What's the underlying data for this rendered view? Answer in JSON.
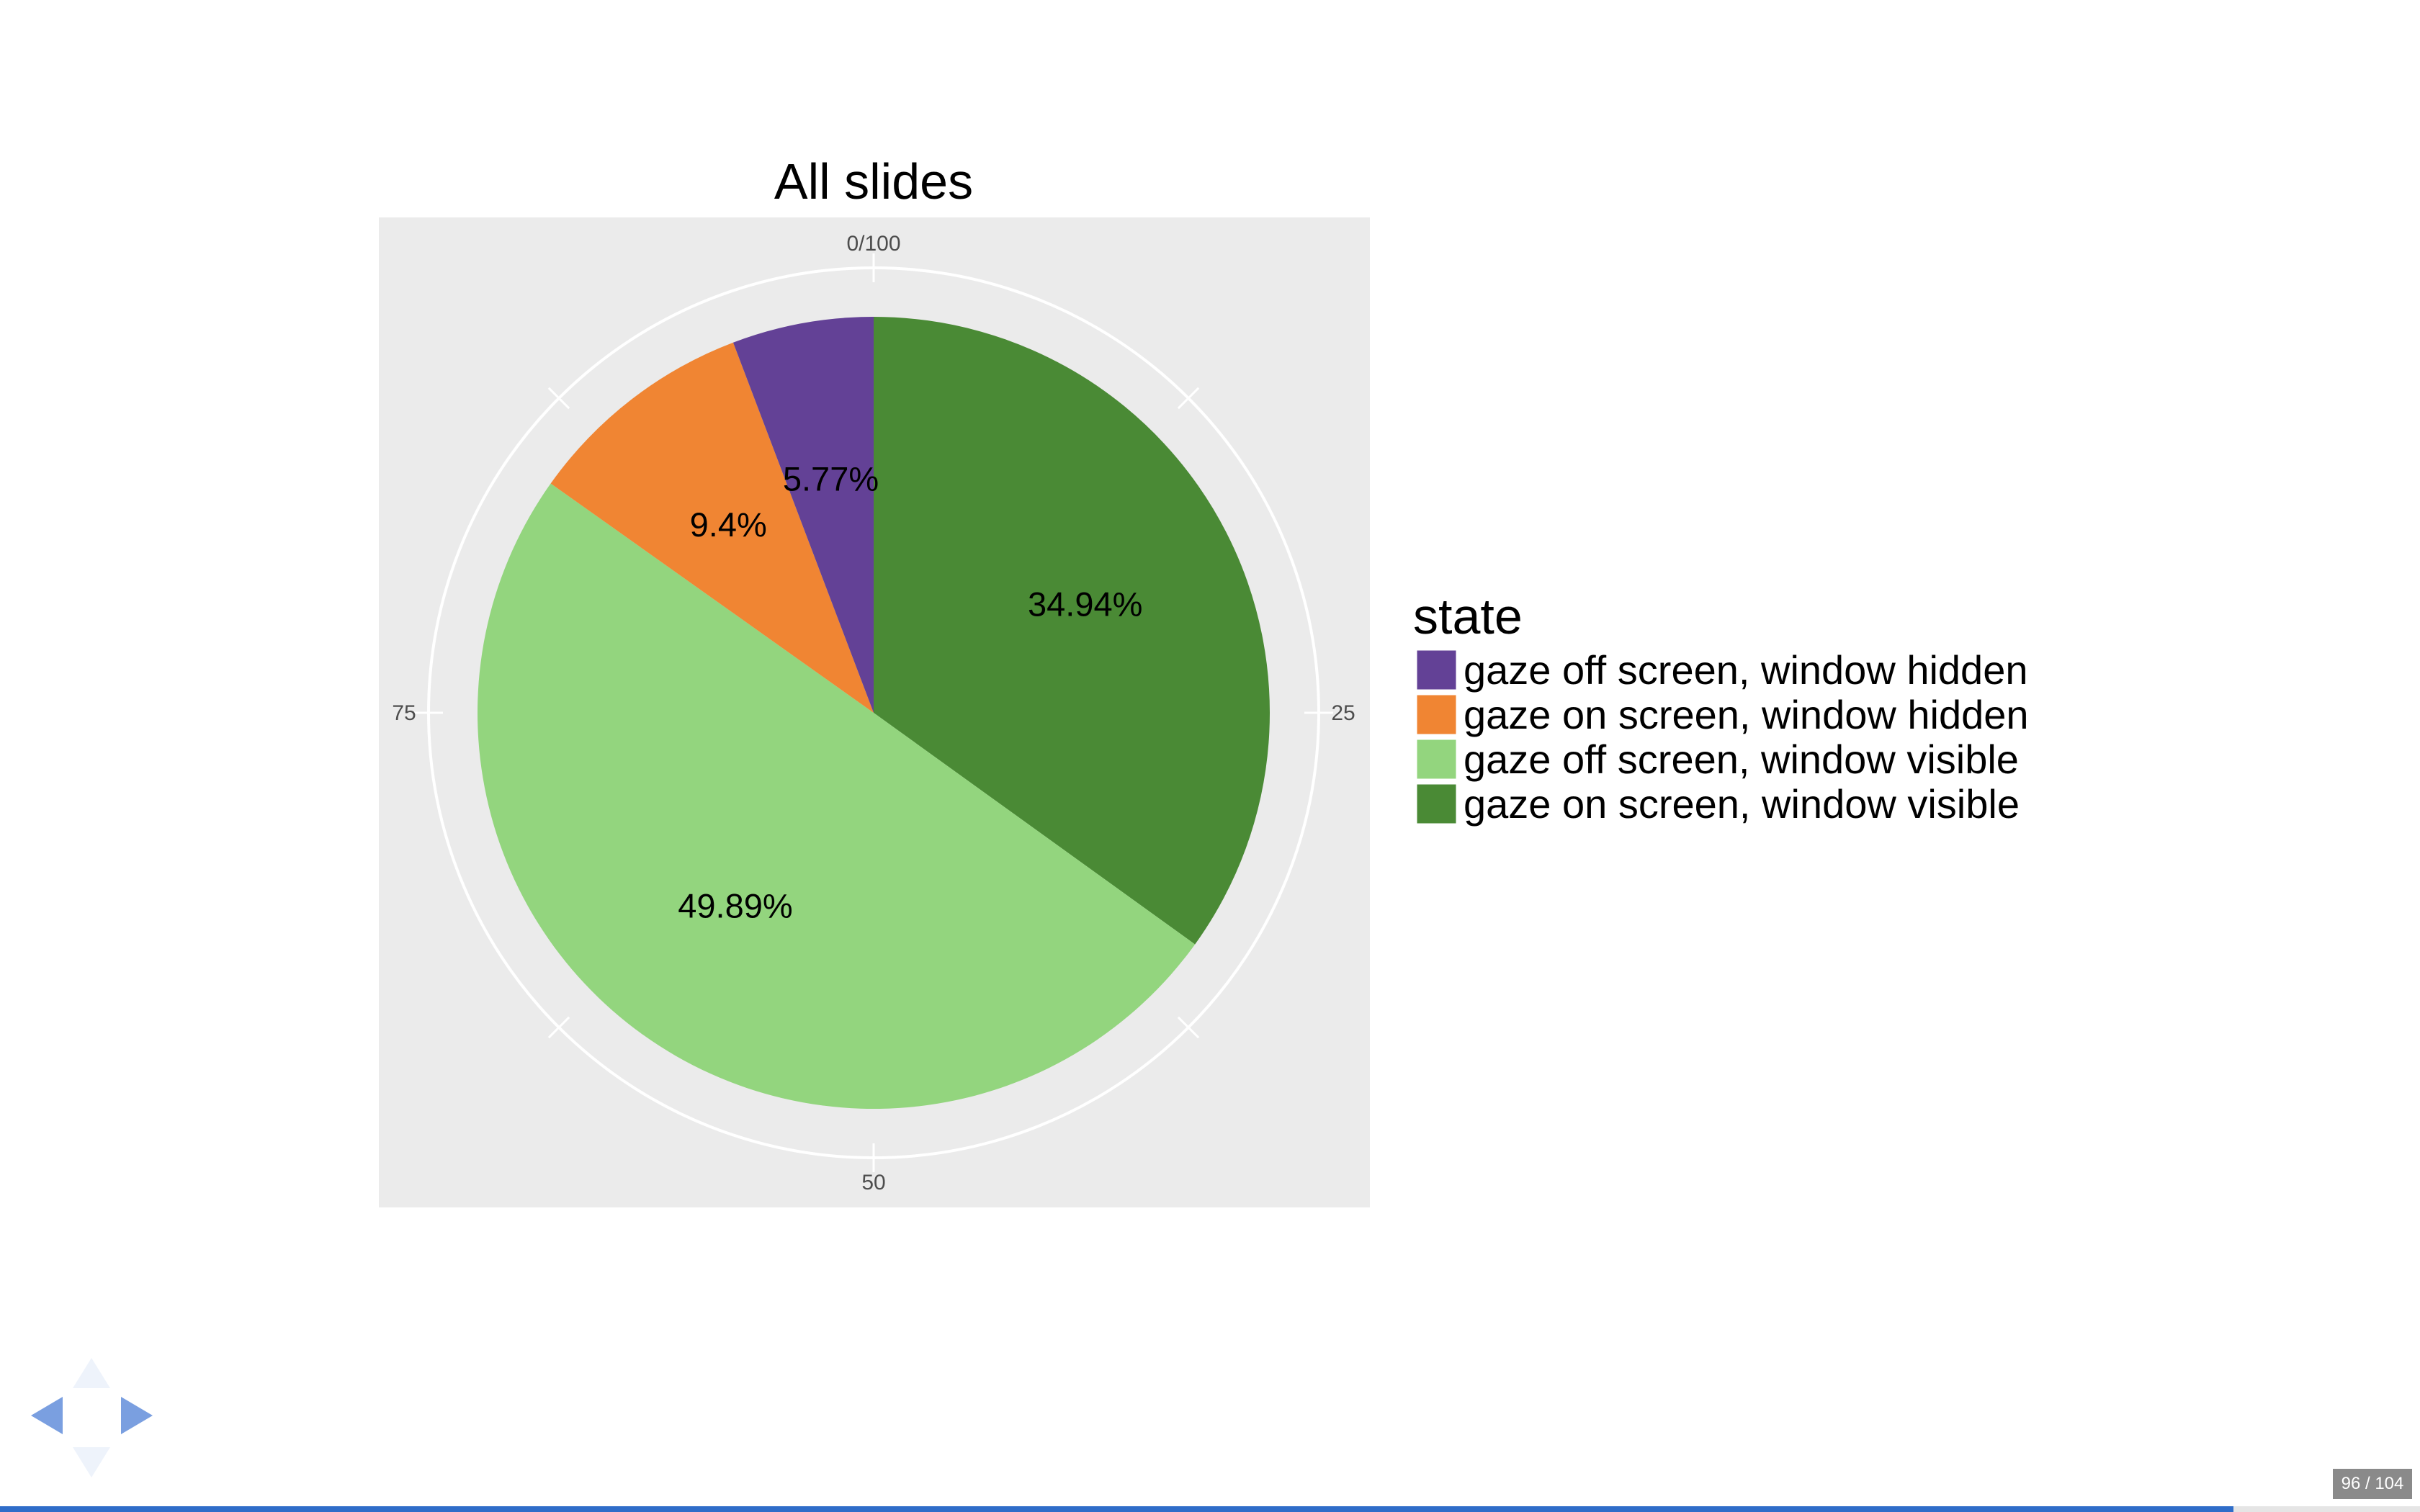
{
  "chart_data": {
    "type": "pie",
    "title": "All slides",
    "slices": [
      {
        "label": "gaze on screen, window visible",
        "value": 34.94,
        "display": "34.94%",
        "color": "#4a8a35"
      },
      {
        "label": "gaze off screen, window visible",
        "value": 49.89,
        "display": "49.89%",
        "color": "#93d57e"
      },
      {
        "label": "gaze on screen, window hidden",
        "value": 9.4,
        "display": "9.4%",
        "color": "#f08533"
      },
      {
        "label": "gaze off screen, window hidden",
        "value": 5.77,
        "display": "5.77%",
        "color": "#634196"
      }
    ],
    "axis_ticks": [
      {
        "value": 0,
        "label": "0/100"
      },
      {
        "value": 25,
        "label": "25"
      },
      {
        "value": 50,
        "label": "50"
      },
      {
        "value": 75,
        "label": "75"
      }
    ],
    "axis_range": [
      0,
      100
    ],
    "panel_background": "#ebebeb",
    "grid": true,
    "legend": {
      "title": "state",
      "position": "right",
      "entries": [
        {
          "label": "gaze off screen, window hidden",
          "color": "#634196"
        },
        {
          "label": "gaze on screen, window hidden",
          "color": "#f08533"
        },
        {
          "label": "gaze off screen, window visible",
          "color": "#93d57e"
        },
        {
          "label": "gaze on screen, window visible",
          "color": "#4a8a35"
        }
      ]
    }
  },
  "navigation": {
    "icons": [
      "arrow-left-icon",
      "arrow-right-icon",
      "arrow-up-icon",
      "arrow-down-icon"
    ],
    "accent_color": "#7a9fe0"
  },
  "slide_counter": "96 / 104",
  "progress": {
    "current": 96,
    "total": 104,
    "fraction": 0.923
  }
}
